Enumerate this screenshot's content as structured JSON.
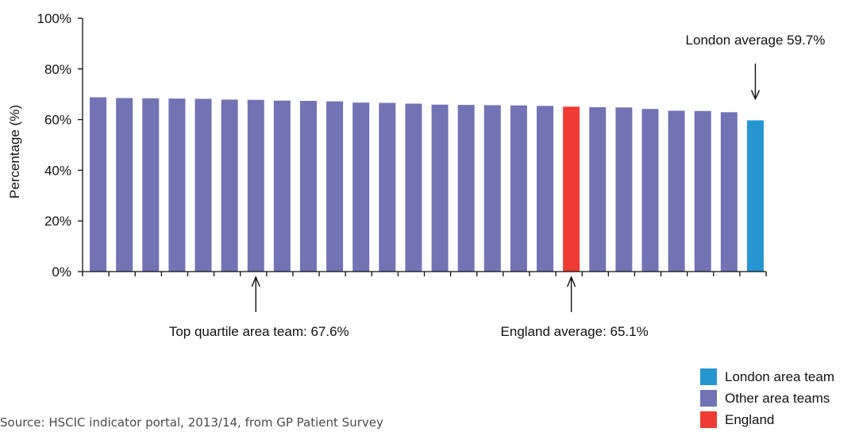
{
  "chart_data": {
    "type": "bar",
    "ylabel": "Percentage (%)",
    "ylim": [
      0,
      100
    ],
    "yticks": [
      "0%",
      "20%",
      "40%",
      "60%",
      "80%",
      "100%"
    ],
    "ytick_values": [
      0,
      20,
      40,
      60,
      80,
      100
    ],
    "values": [
      68.8,
      68.5,
      68.4,
      68.3,
      68.2,
      67.9,
      67.8,
      67.5,
      67.4,
      67.2,
      66.7,
      66.6,
      66.3,
      65.9,
      65.8,
      65.7,
      65.6,
      65.4,
      65.1,
      64.9,
      64.8,
      64.2,
      63.5,
      63.4,
      62.9,
      59.7
    ],
    "bar_kinds": [
      "other",
      "other",
      "other",
      "other",
      "other",
      "other",
      "other",
      "other",
      "other",
      "other",
      "other",
      "other",
      "other",
      "other",
      "other",
      "other",
      "other",
      "other",
      "england",
      "other",
      "other",
      "other",
      "other",
      "other",
      "other",
      "london"
    ],
    "grid": false,
    "legend_position": "bottom-right",
    "annotations": [
      {
        "text": "London average 59.7%",
        "bar_index": 25,
        "position": "above"
      },
      {
        "text": "Top quartile area team: 67.6%",
        "bar_index": 6,
        "position": "below"
      },
      {
        "text": "England average: 65.1%",
        "bar_index": 18,
        "position": "below"
      }
    ]
  },
  "colors": {
    "london": "#2596cf",
    "other": "#7173b5",
    "england": "#ee3b33"
  },
  "legend": [
    {
      "label": "London area team",
      "kind": "london"
    },
    {
      "label": "Other area teams",
      "kind": "other"
    },
    {
      "label": "England",
      "kind": "england"
    }
  ],
  "source": "Source: HSCIC indicator portal, 2013/14, from GP Patient Survey"
}
